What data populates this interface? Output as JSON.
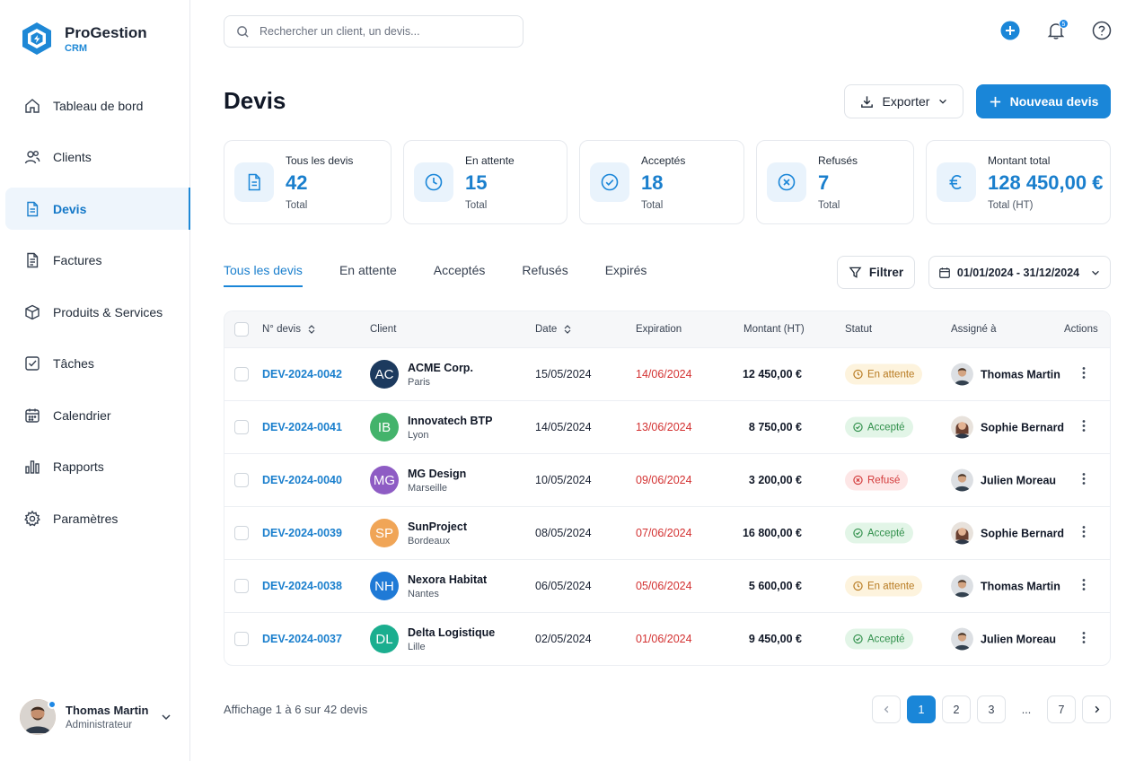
{
  "brand": {
    "name": "ProGestion",
    "sub": "CRM"
  },
  "sidebar": {
    "items": [
      {
        "label": "Tableau de bord",
        "icon": "home-icon"
      },
      {
        "label": "Clients",
        "icon": "users-icon"
      },
      {
        "label": "Devis",
        "icon": "document-icon",
        "active": true
      },
      {
        "label": "Factures",
        "icon": "invoice-icon"
      },
      {
        "label": "Produits & Services",
        "icon": "box-icon"
      },
      {
        "label": "Tâches",
        "icon": "checkbox-icon"
      },
      {
        "label": "Calendrier",
        "icon": "calendar-icon"
      },
      {
        "label": "Rapports",
        "icon": "bar-chart-icon"
      },
      {
        "label": "Paramètres",
        "icon": "gear-icon"
      }
    ],
    "user": {
      "name": "Thomas Martin",
      "role": "Administrateur"
    }
  },
  "search": {
    "placeholder": "Rechercher un client, un devis..."
  },
  "notifications": {
    "count": "5"
  },
  "page": {
    "title": "Devis",
    "export_label": "Exporter",
    "new_label": "Nouveau devis"
  },
  "stats": [
    {
      "label": "Tous les devis",
      "value": "42",
      "sub": "Total",
      "icon": "document-icon"
    },
    {
      "label": "En attente",
      "value": "15",
      "sub": "Total",
      "icon": "clock-icon"
    },
    {
      "label": "Acceptés",
      "value": "18",
      "sub": "Total",
      "icon": "check-circle-icon"
    },
    {
      "label": "Refusés",
      "value": "7",
      "sub": "Total",
      "icon": "x-circle-icon"
    },
    {
      "label": "Montant total",
      "value": "128 450,00 €",
      "sub": "Total (HT)",
      "icon": "euro-icon"
    }
  ],
  "tabs": [
    "Tous les devis",
    "En attente",
    "Acceptés",
    "Refusés",
    "Expirés"
  ],
  "filter_label": "Filtrer",
  "date_range": "01/01/2024 - 31/12/2024",
  "table": {
    "headers": {
      "number": "N° devis",
      "client": "Client",
      "date": "Date",
      "expiration": "Expiration",
      "amount": "Montant (HT)",
      "status": "Statut",
      "assigned": "Assigné à",
      "actions": "Actions"
    },
    "rows": [
      {
        "number": "DEV-2024-0042",
        "initials": "AC",
        "avatar_color": "#1c3a5e",
        "client": "ACME Corp.",
        "city": "Paris",
        "date": "15/05/2024",
        "expiration": "14/06/2024",
        "amount": "12 450,00 €",
        "status": "En attente",
        "status_type": "wait",
        "assignee": "Thomas Martin",
        "gender": "m"
      },
      {
        "number": "DEV-2024-0041",
        "initials": "IB",
        "avatar_color": "#43b36b",
        "client": "Innovatech BTP",
        "city": "Lyon",
        "date": "14/05/2024",
        "expiration": "13/06/2024",
        "amount": "8 750,00 €",
        "status": "Accepté",
        "status_type": "ok",
        "assignee": "Sophie Bernard",
        "gender": "f"
      },
      {
        "number": "DEV-2024-0040",
        "initials": "MG",
        "avatar_color": "#8e5cc4",
        "client": "MG Design",
        "city": "Marseille",
        "date": "10/05/2024",
        "expiration": "09/06/2024",
        "amount": "3 200,00 €",
        "status": "Refusé",
        "status_type": "ko",
        "assignee": "Julien Moreau",
        "gender": "m"
      },
      {
        "number": "DEV-2024-0039",
        "initials": "SP",
        "avatar_color": "#f0a557",
        "client": "SunProject",
        "city": "Bordeaux",
        "date": "08/05/2024",
        "expiration": "07/06/2024",
        "amount": "16 800,00 €",
        "status": "Accepté",
        "status_type": "ok",
        "assignee": "Sophie Bernard",
        "gender": "f"
      },
      {
        "number": "DEV-2024-0038",
        "initials": "NH",
        "avatar_color": "#1f7ad6",
        "client": "Nexora Habitat",
        "city": "Nantes",
        "date": "06/05/2024",
        "expiration": "05/06/2024",
        "amount": "5 600,00 €",
        "status": "En attente",
        "status_type": "wait",
        "assignee": "Thomas Martin",
        "gender": "m"
      },
      {
        "number": "DEV-2024-0037",
        "initials": "DL",
        "avatar_color": "#1bae8f",
        "client": "Delta Logistique",
        "city": "Lille",
        "date": "02/05/2024",
        "expiration": "01/06/2024",
        "amount": "9 450,00 €",
        "status": "Accepté",
        "status_type": "ok",
        "assignee": "Julien Moreau",
        "gender": "m"
      }
    ]
  },
  "footer": {
    "info": "Affichage 1 à 6 sur 42 devis",
    "pages": [
      "1",
      "2",
      "3",
      "...",
      "7"
    ]
  },
  "colors": {
    "accent": "#1a86d8",
    "expired": "#d33131"
  }
}
